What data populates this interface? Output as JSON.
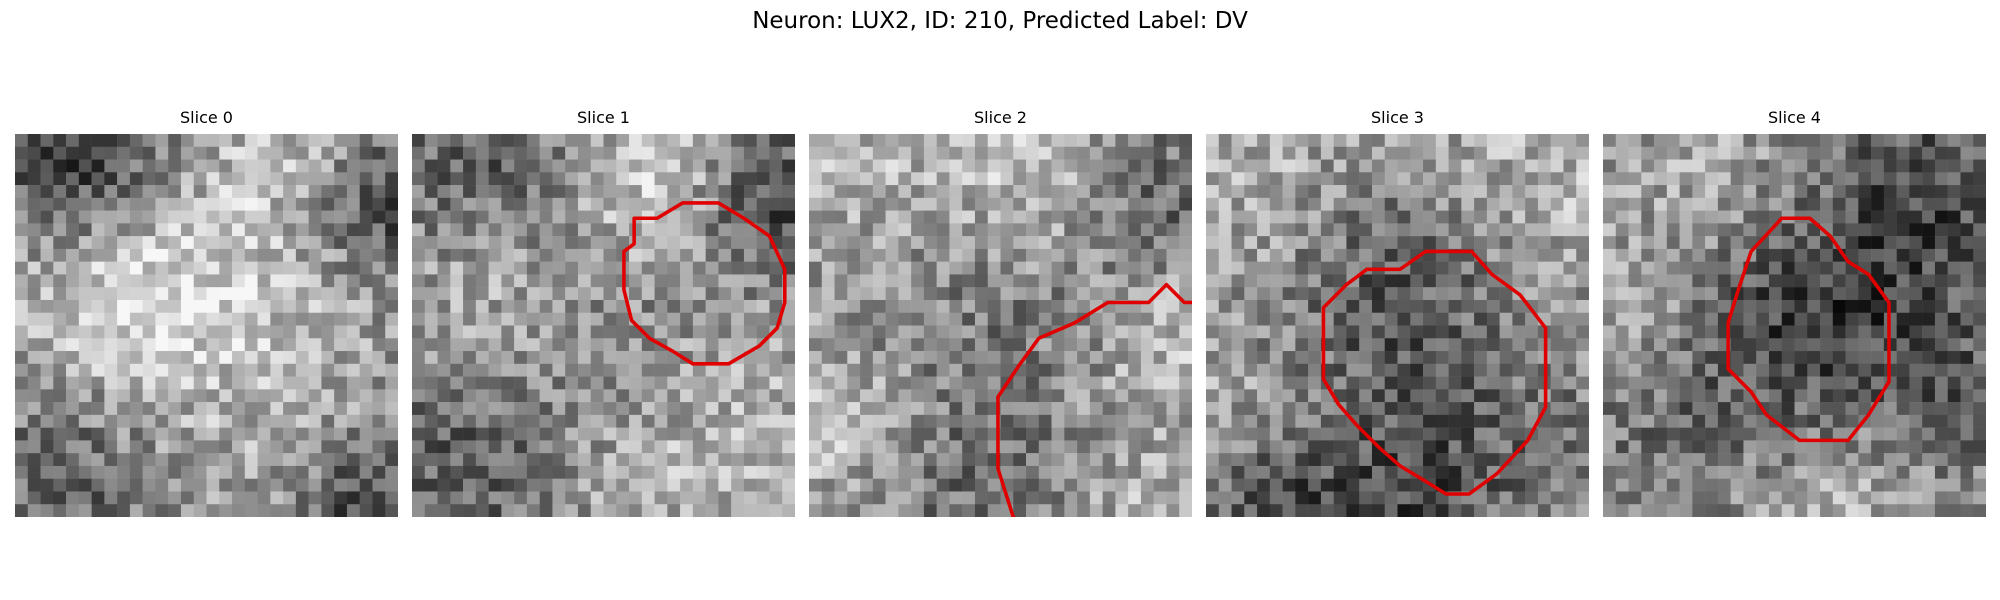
{
  "figure": {
    "title": "Neuron: LUX2, ID: 210, Predicted Label: DV"
  },
  "colors": {
    "contour": "#e00000",
    "background": "#ffffff"
  },
  "slices": [
    {
      "title": "Slice 0",
      "has_contour": false
    },
    {
      "title": "Slice 1",
      "has_contour": true
    },
    {
      "title": "Slice 2",
      "has_contour": true
    },
    {
      "title": "Slice 3",
      "has_contour": true
    },
    {
      "title": "Slice 4",
      "has_contour": true
    }
  ]
}
